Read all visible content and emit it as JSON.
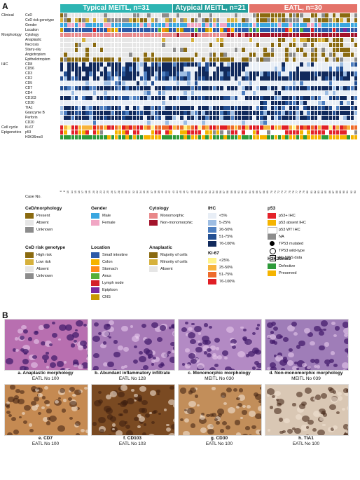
{
  "panel_a_label": "A",
  "panel_b_label": "B",
  "groups": [
    {
      "label": "Typical MEITL, n=31",
      "color": "#2db5b3"
    },
    {
      "label": "Atypical MEITL, n=21",
      "color": "#239e9b"
    },
    {
      "label": "EATL, n=30",
      "color": "#e4736a"
    }
  ],
  "categories": [
    {
      "label": "Clinical",
      "rows": [
        "CeD",
        "CeD risk genotype",
        "Gender",
        "Location"
      ]
    },
    {
      "label": "Morphology",
      "rows": [
        "Cytology",
        "Anaplastic",
        "Necrosis",
        "Starry-sky",
        "Angiotropism",
        "Epitheliotropism"
      ]
    },
    {
      "label": "IHC",
      "rows": [
        "CD8",
        "CD56",
        "CD3",
        "CD2",
        "CD5",
        "CD7",
        "CD4",
        "CD103",
        "CD30",
        "TIA1",
        "Granzyme B",
        "Perforin",
        "CD20"
      ]
    },
    {
      "label": "Cell cycle",
      "rows": [
        "Ki-67"
      ]
    },
    {
      "label": "Epigenetics",
      "rows": [
        "p53",
        "H3K36me3"
      ]
    }
  ],
  "case_no_label": "Case No.",
  "case_numbers": [
    "6",
    "8",
    "10",
    "14",
    "15",
    "16",
    "17",
    "18",
    "19",
    "20",
    "22",
    "23",
    "24",
    "25",
    "26",
    "27",
    "28",
    "29",
    "30",
    "31",
    "32",
    "33",
    "34",
    "35",
    "36",
    "37",
    "38",
    "39",
    "40",
    "41",
    "42",
    "43",
    "44",
    "45",
    "46",
    "47",
    "48",
    "49",
    "50",
    "51",
    "52",
    "53",
    "54",
    "55",
    "56",
    "57",
    "58",
    "59",
    "60",
    "61",
    "62",
    "63",
    "64",
    "65",
    "66",
    "67",
    "68",
    "69",
    "70",
    "71",
    "72",
    "73",
    "74",
    "75",
    "76",
    "77",
    "78",
    "79",
    "80",
    "81",
    "82",
    "83",
    "84",
    "85",
    "86",
    "87",
    "88",
    "89",
    "90",
    "91",
    "92",
    "93"
  ],
  "legends": [
    {
      "title": "CeD/morphology",
      "items": [
        {
          "label": "Present",
          "color": "#8a6a10"
        },
        {
          "label": "Absent",
          "color": "#e6e6e6"
        },
        {
          "label": "Unknown",
          "color": "#8c8c8c"
        }
      ]
    },
    {
      "title": "Gender",
      "items": [
        {
          "label": "Male",
          "color": "#3aa7e0"
        },
        {
          "label": "Female",
          "color": "#f1a6c4"
        }
      ]
    },
    {
      "title": "Cytology",
      "items": [
        {
          "label": "Monomorphic",
          "color": "#e8888a"
        },
        {
          "label": "Non-monomorphic",
          "color": "#a3132b"
        }
      ]
    },
    {
      "title": "IHC",
      "items": [
        {
          "label": "<5%",
          "color": "#e8eef6"
        },
        {
          "label": "5-25%",
          "color": "#9dbde3"
        },
        {
          "label": "26-50%",
          "color": "#4e7fc0"
        },
        {
          "label": "51-75%",
          "color": "#234f92"
        },
        {
          "label": "76-100%",
          "color": "#112a5c"
        }
      ]
    },
    {
      "title": "p53",
      "items": [
        {
          "label": "p53+ IHC",
          "color": "#e4222a"
        },
        {
          "label": "p53 absent IHC",
          "color": "#f5b400"
        },
        {
          "label": "p53 WT IHC",
          "color": "#ffffff"
        },
        {
          "label": "NA",
          "color": "#8c8c8c"
        },
        {
          "label": "TP53 mutated",
          "color": "#000000"
        },
        {
          "label": "TP53 wild-type",
          "color": "#ffffff"
        },
        {
          "label": "No NGS data",
          "color": "#ffffff"
        }
      ]
    },
    {
      "title": "CeD risk genotype",
      "items": [
        {
          "label": "High risk",
          "color": "#8a6a10"
        },
        {
          "label": "Low risk",
          "color": "#d6b13c"
        },
        {
          "label": "Absent",
          "color": "#e6e6e6"
        },
        {
          "label": "Unknown",
          "color": "#8c8c8c"
        }
      ]
    },
    {
      "title": "Location",
      "items": [
        {
          "label": "Small intestine",
          "color": "#2c5aa8"
        },
        {
          "label": "Colon",
          "color": "#f5b400"
        },
        {
          "label": "Stomach",
          "color": "#ff8c1a"
        },
        {
          "label": "Anus",
          "color": "#55b03a"
        },
        {
          "label": "Lymph node",
          "color": "#d4202a"
        },
        {
          "label": "Epiploon",
          "color": "#7a2b9e"
        },
        {
          "label": "CNS",
          "color": "#c99a00"
        }
      ]
    },
    {
      "title": "Anaplastic",
      "items": [
        {
          "label": "Majority of cells",
          "color": "#8a6a10"
        },
        {
          "label": "Minority of cells",
          "color": "#d6b13c"
        },
        {
          "label": "Absent",
          "color": "#e6e6e6"
        }
      ]
    },
    {
      "title": "Ki-67",
      "items": [
        {
          "label": "<25%",
          "color": "#fff38a"
        },
        {
          "label": "25-50%",
          "color": "#f7b33c"
        },
        {
          "label": "51-75%",
          "color": "#ee6b2b"
        },
        {
          "label": "76-100%",
          "color": "#e01e25"
        }
      ]
    },
    {
      "title": "H3K36me3",
      "items": [
        {
          "label": "Defective",
          "color": "#2e9a3a"
        },
        {
          "label": "Preserved",
          "color": "#f5b400"
        }
      ]
    }
  ],
  "micrographs": [
    {
      "letter": "a.",
      "title": "Anaplastic morphology",
      "sub": "EATL No 100",
      "bg": "#b86fb0"
    },
    {
      "letter": "b.",
      "title": "Abundant inflammatory infiltrate",
      "sub": "EATL No 128",
      "bg": "#a87ab8"
    },
    {
      "letter": "c.",
      "title": "Monomorphic morphology",
      "sub": "MEITL No 030",
      "bg": "#b38ac4"
    },
    {
      "letter": "d.",
      "title": "Non-monomorphic morphology",
      "sub": "MEITL No 039",
      "bg": "#9f7db8"
    },
    {
      "letter": "e.",
      "title": "CD7",
      "sub": "EATL No 100",
      "bg": "#c58a52"
    },
    {
      "letter": "f.",
      "title": "CD103",
      "sub": "EATL No 103",
      "bg": "#7a4a22"
    },
    {
      "letter": "g.",
      "title": "CD30",
      "sub": "EATL No 100",
      "bg": "#c28e5a"
    },
    {
      "letter": "h.",
      "title": "TIA1",
      "sub": "EATL No 100",
      "bg": "#d9c7b4"
    }
  ]
}
